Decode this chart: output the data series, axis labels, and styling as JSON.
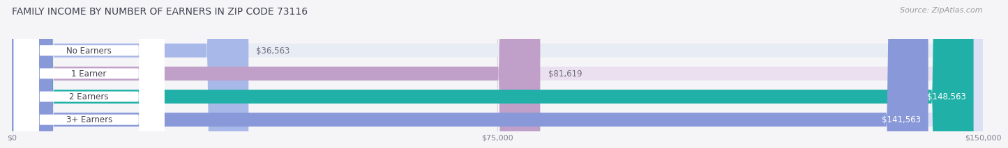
{
  "title": "FAMILY INCOME BY NUMBER OF EARNERS IN ZIP CODE 73116",
  "source": "Source: ZipAtlas.com",
  "categories": [
    "No Earners",
    "1 Earner",
    "2 Earners",
    "3+ Earners"
  ],
  "values": [
    36563,
    81619,
    148563,
    141563
  ],
  "bar_colors": [
    "#a8b8e8",
    "#c0a0c8",
    "#20b0a8",
    "#8898d8"
  ],
  "bar_bg_colors": [
    "#e8ecf5",
    "#ebe0f0",
    "#d5efed",
    "#dde0f5"
  ],
  "label_inside": [
    false,
    false,
    true,
    true
  ],
  "value_label_colors_inside": [
    "white",
    "white",
    "white",
    "white"
  ],
  "value_label_colors_outside": [
    "#707080",
    "#707080",
    "#707080",
    "#707080"
  ],
  "x_max": 150000,
  "x_ticks": [
    0,
    75000,
    150000
  ],
  "x_tick_labels": [
    "$0",
    "$75,000",
    "$150,000"
  ],
  "background_color": "#f5f5f8",
  "title_fontsize": 10,
  "source_fontsize": 8,
  "cat_label_fontsize": 8.5,
  "val_label_fontsize": 8.5,
  "tick_fontsize": 8
}
